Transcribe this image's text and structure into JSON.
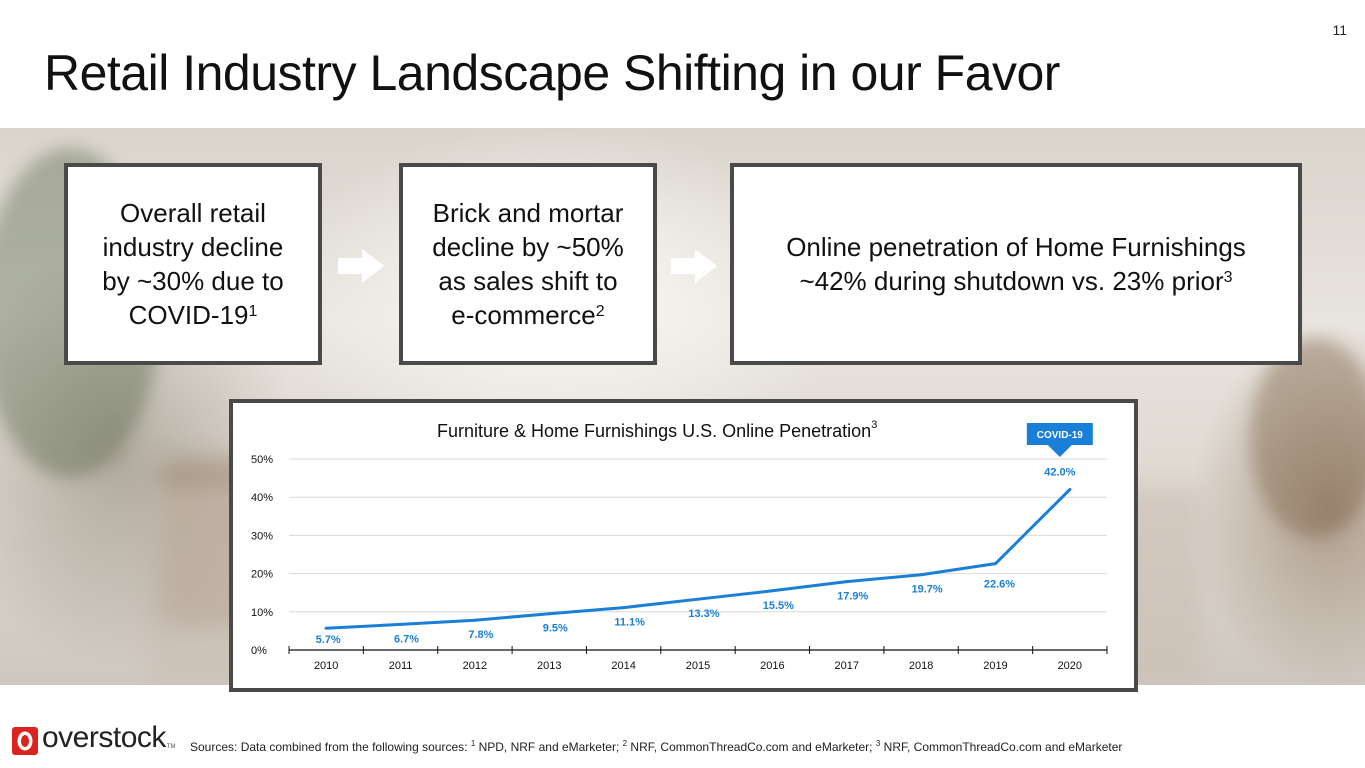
{
  "page_number": "11",
  "title": "Retail Industry Landscape Shifting in our Favor",
  "boxes": [
    {
      "lines": [
        "Overall retail",
        "industry decline",
        "by ~30% due to",
        "COVID-19"
      ],
      "sup": "1"
    },
    {
      "lines": [
        "Brick and mortar",
        "decline by ~50%",
        "as sales shift to",
        "e-commerce"
      ],
      "sup": "2"
    },
    {
      "lines": [
        "Online penetration of Home Furnishings",
        "~42% during shutdown vs. 23% prior"
      ],
      "sup": "3"
    }
  ],
  "arrow_icons": [
    "right-arrow-icon",
    "right-arrow-icon"
  ],
  "colors": {
    "line": "#1a7fd6",
    "label": "#1a7fd6",
    "frame": "#4a4a4a",
    "grid": "#d9d9d9",
    "callout": "#1a7fd6"
  },
  "chart_data": {
    "type": "line",
    "title": "Furniture & Home Furnishings U.S. Online Penetration",
    "title_sup": "3",
    "x": [
      "2010",
      "2011",
      "2012",
      "2013",
      "2014",
      "2015",
      "2016",
      "2017",
      "2018",
      "2019",
      "2020"
    ],
    "values": [
      5.7,
      6.7,
      7.8,
      9.5,
      11.1,
      13.3,
      15.5,
      17.9,
      19.7,
      22.6,
      42.0
    ],
    "data_labels": [
      "5.7%",
      "6.7%",
      "7.8%",
      "9.5%",
      "11.1%",
      "13.3%",
      "15.5%",
      "17.9%",
      "19.7%",
      "22.6%",
      "42.0%"
    ],
    "ylim": [
      0,
      50
    ],
    "yticks": [
      0,
      10,
      20,
      30,
      40,
      50
    ],
    "ytick_labels": [
      "0%",
      "10%",
      "20%",
      "30%",
      "40%",
      "50%"
    ],
    "grid": true,
    "legend": "none",
    "annotation": {
      "text": "COVID-19",
      "x": "2020"
    }
  },
  "logo": {
    "text": "overstock",
    "tm": "TM"
  },
  "sources": {
    "prefix": "Sources:  Data combined from the following sources: ",
    "items": [
      {
        "sup": "1",
        "text": " NPD, NRF and eMarketer; "
      },
      {
        "sup": "2",
        "text": " NRF, CommonThreadCo.com and eMarketer; "
      },
      {
        "sup": "3",
        "text": " NRF, CommonThreadCo.com and eMarketer"
      }
    ]
  }
}
